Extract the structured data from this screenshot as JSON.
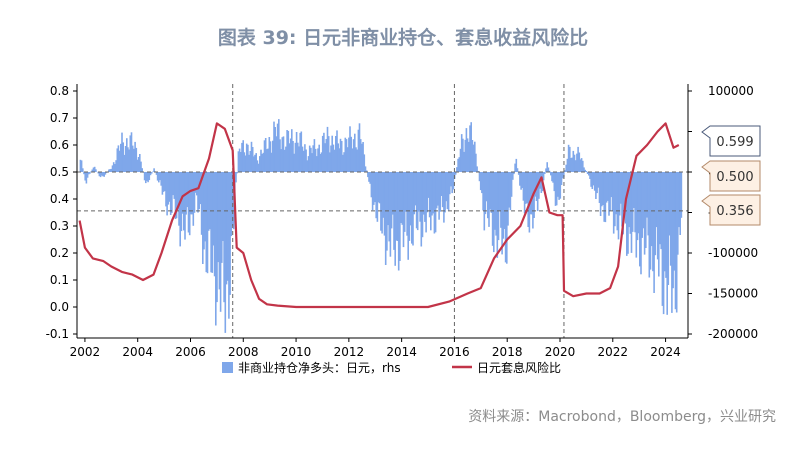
{
  "title": "图表 39: 日元非商业持仓、套息收益风险比",
  "source": "资料来源：Macrobond，Bloomberg，兴业研究",
  "colors": {
    "bars": "#7fa7ea",
    "line": "#c23448",
    "accent_box": "#fdf0e4",
    "axis": "#000000"
  },
  "chart_data": {
    "type": "bar+line",
    "x_ticks": [
      "2002",
      "2004",
      "2006",
      "2008",
      "2010",
      "2012",
      "2014",
      "2016",
      "2018",
      "2020",
      "2022",
      "2024"
    ],
    "xlim": [
      2001.7,
      2024.85
    ],
    "left_axis": {
      "ticks": [
        "0.8",
        "0.7",
        "0.6",
        "0.5",
        "0.4",
        "0.3",
        "0.2",
        "0.1",
        "0.0",
        "-0.1"
      ],
      "ylim": [
        -0.1,
        0.8
      ]
    },
    "right_axis": {
      "ticks": [
        "100000",
        "50000",
        "0",
        "-50000",
        "-100000",
        "-150000",
        "-200000"
      ],
      "ylim": [
        -200000,
        100000
      ]
    },
    "reference_lines": {
      "horizontal": [
        0.5,
        0.356
      ],
      "vertical": [
        2007.6,
        2016.0,
        2020.15
      ]
    },
    "callouts": [
      "0.599",
      "0.500",
      "0.356"
    ],
    "legend": [
      "非商业持仓净多头：日元，rhs",
      "日元套息风险比"
    ],
    "series": [
      {
        "name": "非商业持仓净多头：日元，rhs",
        "type": "bar",
        "axis": "right",
        "points": [
          [
            2001.8,
            20000
          ],
          [
            2002.0,
            -15000
          ],
          [
            2002.3,
            8000
          ],
          [
            2002.6,
            -10000
          ],
          [
            2003.0,
            8000
          ],
          [
            2003.4,
            45000
          ],
          [
            2003.8,
            40000
          ],
          [
            2004.0,
            30000
          ],
          [
            2004.3,
            -20000
          ],
          [
            2004.6,
            5000
          ],
          [
            2005.0,
            -40000
          ],
          [
            2005.4,
            -60000
          ],
          [
            2005.8,
            -90000
          ],
          [
            2006.2,
            -40000
          ],
          [
            2006.5,
            -110000
          ],
          [
            2006.9,
            -150000
          ],
          [
            2007.3,
            -190000
          ],
          [
            2007.5,
            -130000
          ],
          [
            2007.8,
            30000
          ],
          [
            2008.1,
            40000
          ],
          [
            2008.5,
            20000
          ],
          [
            2008.8,
            35000
          ],
          [
            2009.2,
            60000
          ],
          [
            2009.6,
            45000
          ],
          [
            2010.0,
            50000
          ],
          [
            2010.4,
            30000
          ],
          [
            2010.8,
            35000
          ],
          [
            2011.2,
            50000
          ],
          [
            2011.6,
            40000
          ],
          [
            2012.0,
            45000
          ],
          [
            2012.4,
            55000
          ],
          [
            2012.8,
            -30000
          ],
          [
            2013.2,
            -80000
          ],
          [
            2013.6,
            -110000
          ],
          [
            2014.0,
            -100000
          ],
          [
            2014.5,
            -80000
          ],
          [
            2015.0,
            -70000
          ],
          [
            2015.5,
            -60000
          ],
          [
            2015.9,
            -30000
          ],
          [
            2016.3,
            55000
          ],
          [
            2016.7,
            50000
          ],
          [
            2017.1,
            -60000
          ],
          [
            2017.5,
            -90000
          ],
          [
            2017.9,
            -110000
          ],
          [
            2018.3,
            20000
          ],
          [
            2018.7,
            -70000
          ],
          [
            2019.1,
            -55000
          ],
          [
            2019.5,
            15000
          ],
          [
            2019.9,
            -50000
          ],
          [
            2020.3,
            30000
          ],
          [
            2020.7,
            25000
          ],
          [
            2021.1,
            -10000
          ],
          [
            2021.5,
            -50000
          ],
          [
            2021.9,
            -60000
          ],
          [
            2022.3,
            -80000
          ],
          [
            2022.8,
            -100000
          ],
          [
            2023.2,
            -110000
          ],
          [
            2023.6,
            -130000
          ],
          [
            2024.0,
            -160000
          ],
          [
            2024.3,
            -180000
          ],
          [
            2024.6,
            -50000
          ]
        ]
      },
      {
        "name": "日元套息风险比",
        "type": "line",
        "axis": "left",
        "points": [
          [
            2001.8,
            0.32
          ],
          [
            2002.0,
            0.22
          ],
          [
            2002.3,
            0.18
          ],
          [
            2002.7,
            0.17
          ],
          [
            2003.0,
            0.15
          ],
          [
            2003.4,
            0.13
          ],
          [
            2003.8,
            0.12
          ],
          [
            2004.2,
            0.1
          ],
          [
            2004.6,
            0.12
          ],
          [
            2004.9,
            0.2
          ],
          [
            2005.3,
            0.32
          ],
          [
            2005.7,
            0.41
          ],
          [
            2006.0,
            0.43
          ],
          [
            2006.3,
            0.44
          ],
          [
            2006.7,
            0.55
          ],
          [
            2007.0,
            0.68
          ],
          [
            2007.3,
            0.66
          ],
          [
            2007.6,
            0.58
          ],
          [
            2007.75,
            0.22
          ],
          [
            2008.0,
            0.2
          ],
          [
            2008.3,
            0.1
          ],
          [
            2008.6,
            0.03
          ],
          [
            2008.9,
            0.01
          ],
          [
            2009.3,
            0.005
          ],
          [
            2010.0,
            0.0
          ],
          [
            2011.0,
            0.0
          ],
          [
            2012.0,
            0.0
          ],
          [
            2013.0,
            0.0
          ],
          [
            2014.0,
            0.0
          ],
          [
            2015.0,
            0.0
          ],
          [
            2015.8,
            0.02
          ],
          [
            2016.5,
            0.05
          ],
          [
            2017.0,
            0.07
          ],
          [
            2017.5,
            0.18
          ],
          [
            2018.0,
            0.25
          ],
          [
            2018.5,
            0.3
          ],
          [
            2019.0,
            0.42
          ],
          [
            2019.3,
            0.48
          ],
          [
            2019.6,
            0.35
          ],
          [
            2019.9,
            0.34
          ],
          [
            2020.1,
            0.34
          ],
          [
            2020.15,
            0.06
          ],
          [
            2020.5,
            0.04
          ],
          [
            2021.0,
            0.05
          ],
          [
            2021.5,
            0.05
          ],
          [
            2021.9,
            0.07
          ],
          [
            2022.2,
            0.15
          ],
          [
            2022.5,
            0.4
          ],
          [
            2022.9,
            0.56
          ],
          [
            2023.3,
            0.6
          ],
          [
            2023.7,
            0.65
          ],
          [
            2024.0,
            0.68
          ],
          [
            2024.3,
            0.59
          ],
          [
            2024.5,
            0.6
          ]
        ]
      }
    ]
  }
}
